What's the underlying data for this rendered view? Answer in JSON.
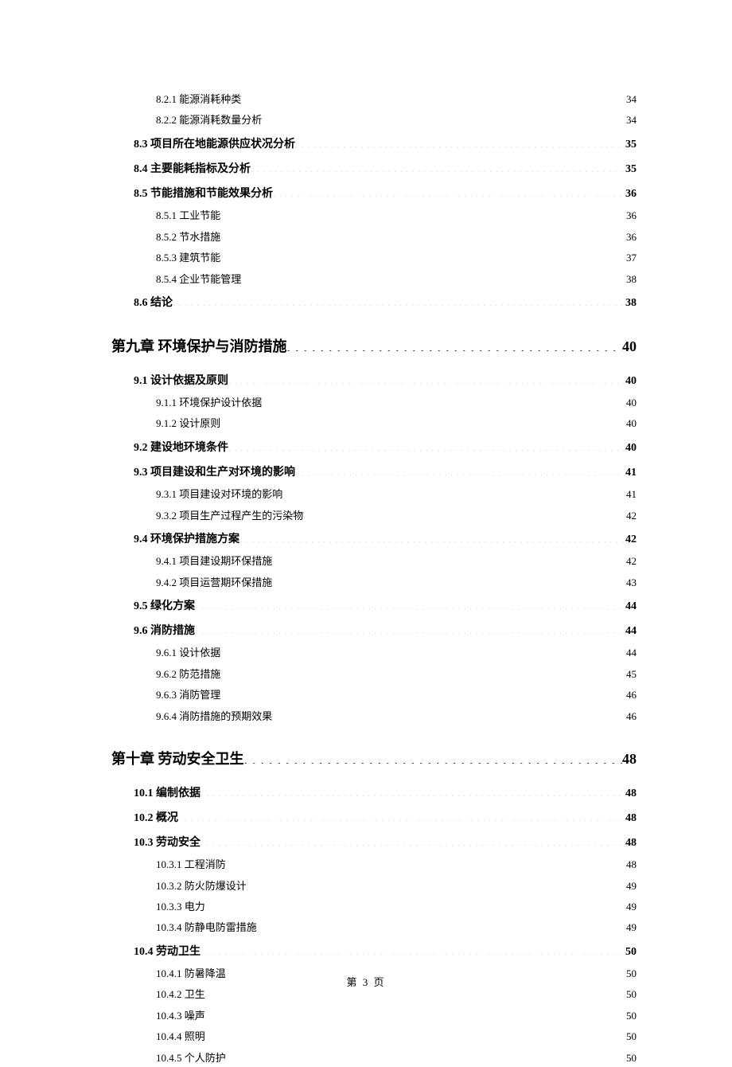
{
  "footer": "第 3 页",
  "entries": [
    {
      "level": "sub",
      "label": "8.2.1 能源消耗种类",
      "page": "34"
    },
    {
      "level": "sub",
      "label": "8.2.2 能源消耗数量分析",
      "page": "34"
    },
    {
      "level": "section",
      "label": "8.3 项目所在地能源供应状况分析",
      "page": "35"
    },
    {
      "level": "section",
      "label": "8.4 主要能耗指标及分析",
      "page": "35"
    },
    {
      "level": "section",
      "label": "8.5 节能措施和节能效果分析",
      "page": "36"
    },
    {
      "level": "sub",
      "label": "8.5.1 工业节能",
      "page": "36"
    },
    {
      "level": "sub",
      "label": "8.5.2 节水措施",
      "page": "36"
    },
    {
      "level": "sub",
      "label": "8.5.3 建筑节能",
      "page": "37"
    },
    {
      "level": "sub",
      "label": "8.5.4 企业节能管理",
      "page": "38"
    },
    {
      "level": "section",
      "label": "8.6 结论",
      "page": "38"
    },
    {
      "level": "chapter",
      "label": "第九章  环境保护与消防措施",
      "page": "40"
    },
    {
      "level": "section",
      "label": "9.1 设计依据及原则",
      "page": "40"
    },
    {
      "level": "sub",
      "label": "9.1.1 环境保护设计依据",
      "page": "40"
    },
    {
      "level": "sub",
      "label": "9.1.2 设计原则",
      "page": "40"
    },
    {
      "level": "section",
      "label": "9.2 建设地环境条件",
      "page": "40"
    },
    {
      "level": "section",
      "label": "9.3  项目建设和生产对环境的影响",
      "page": "41"
    },
    {
      "level": "sub",
      "label": "9.3.1  项目建设对环境的影响",
      "page": "41"
    },
    {
      "level": "sub",
      "label": "9.3.2  项目生产过程产生的污染物",
      "page": "42"
    },
    {
      "level": "section",
      "label": "9.4  环境保护措施方案",
      "page": "42"
    },
    {
      "level": "sub",
      "label": "9.4.1  项目建设期环保措施",
      "page": "42"
    },
    {
      "level": "sub",
      "label": "9.4.2  项目运营期环保措施",
      "page": "43"
    },
    {
      "level": "section",
      "label": "9.5 绿化方案",
      "page": "44"
    },
    {
      "level": "section",
      "label": "9.6 消防措施",
      "page": "44"
    },
    {
      "level": "sub",
      "label": "9.6.1 设计依据",
      "page": "44"
    },
    {
      "level": "sub",
      "label": "9.6.2 防范措施",
      "page": "45"
    },
    {
      "level": "sub",
      "label": "9.6.3 消防管理",
      "page": "46"
    },
    {
      "level": "sub",
      "label": "9.6.4 消防措施的预期效果",
      "page": "46"
    },
    {
      "level": "chapter",
      "label": "第十章  劳动安全卫生",
      "page": "48"
    },
    {
      "level": "section",
      "label": "10.1  编制依据",
      "page": "48"
    },
    {
      "level": "section",
      "label": "10.2 概况",
      "page": "48"
    },
    {
      "level": "section",
      "label": "10.3  劳动安全",
      "page": "48"
    },
    {
      "level": "sub",
      "label": "10.3.1 工程消防",
      "page": "48"
    },
    {
      "level": "sub",
      "label": "10.3.2 防火防爆设计",
      "page": "49"
    },
    {
      "level": "sub",
      "label": "10.3.3 电力",
      "page": "49"
    },
    {
      "level": "sub",
      "label": "10.3.4 防静电防雷措施",
      "page": "49"
    },
    {
      "level": "section",
      "label": "10.4 劳动卫生",
      "page": "50"
    },
    {
      "level": "sub",
      "label": "10.4.1 防暑降温",
      "page": "50"
    },
    {
      "level": "sub",
      "label": "10.4.2 卫生",
      "page": "50"
    },
    {
      "level": "sub",
      "label": "10.4.3 噪声",
      "page": "50"
    },
    {
      "level": "sub",
      "label": "10.4.4 照明",
      "page": "50"
    },
    {
      "level": "sub",
      "label": "10.4.5 个人防护",
      "page": "50"
    }
  ]
}
